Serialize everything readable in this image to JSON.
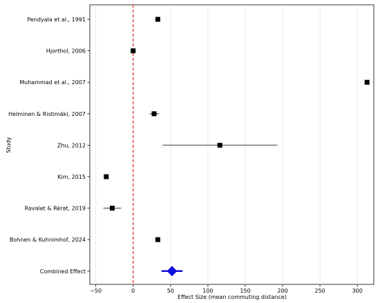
{
  "chart_data": {
    "type": "scatter",
    "title": "",
    "xlabel": "Effect Size (mean commuting distance)",
    "ylabel": "Study",
    "xlim": [
      -58,
      322
    ],
    "xticks": [
      -50,
      0,
      50,
      100,
      150,
      200,
      250,
      300
    ],
    "grid": "x",
    "reference_line": {
      "x": 0,
      "color": "#e41a1c",
      "style": "dashed"
    },
    "studies": [
      {
        "label": "Pendyala et al., 1991",
        "effect": 33,
        "ci": [
          33,
          33
        ]
      },
      {
        "label": "Hjorthol, 2006",
        "effect": 0,
        "ci": [
          0,
          0
        ]
      },
      {
        "label": "Muhammad et al., 2007",
        "effect": 313,
        "ci": [
          313,
          313
        ]
      },
      {
        "label": "Helminen & Ristimäki, 2007",
        "effect": 28,
        "ci": [
          22,
          35
        ]
      },
      {
        "label": "Zhu, 2012",
        "effect": 116,
        "ci": [
          39,
          193
        ]
      },
      {
        "label": "Kim, 2015",
        "effect": -36,
        "ci": [
          -36,
          -36
        ]
      },
      {
        "label": "Ravalet & Rérat, 2019",
        "effect": -28,
        "ci": [
          -40,
          -16
        ]
      },
      {
        "label": "Bohnen & Kuhnimhof, 2024",
        "effect": 33,
        "ci": [
          33,
          33
        ]
      }
    ],
    "combined": {
      "label": "Combined Effect",
      "effect": 52,
      "ci": [
        38,
        66
      ],
      "color": "#1010dd"
    },
    "marker_color": "#000000",
    "ci_color": "#777777"
  }
}
